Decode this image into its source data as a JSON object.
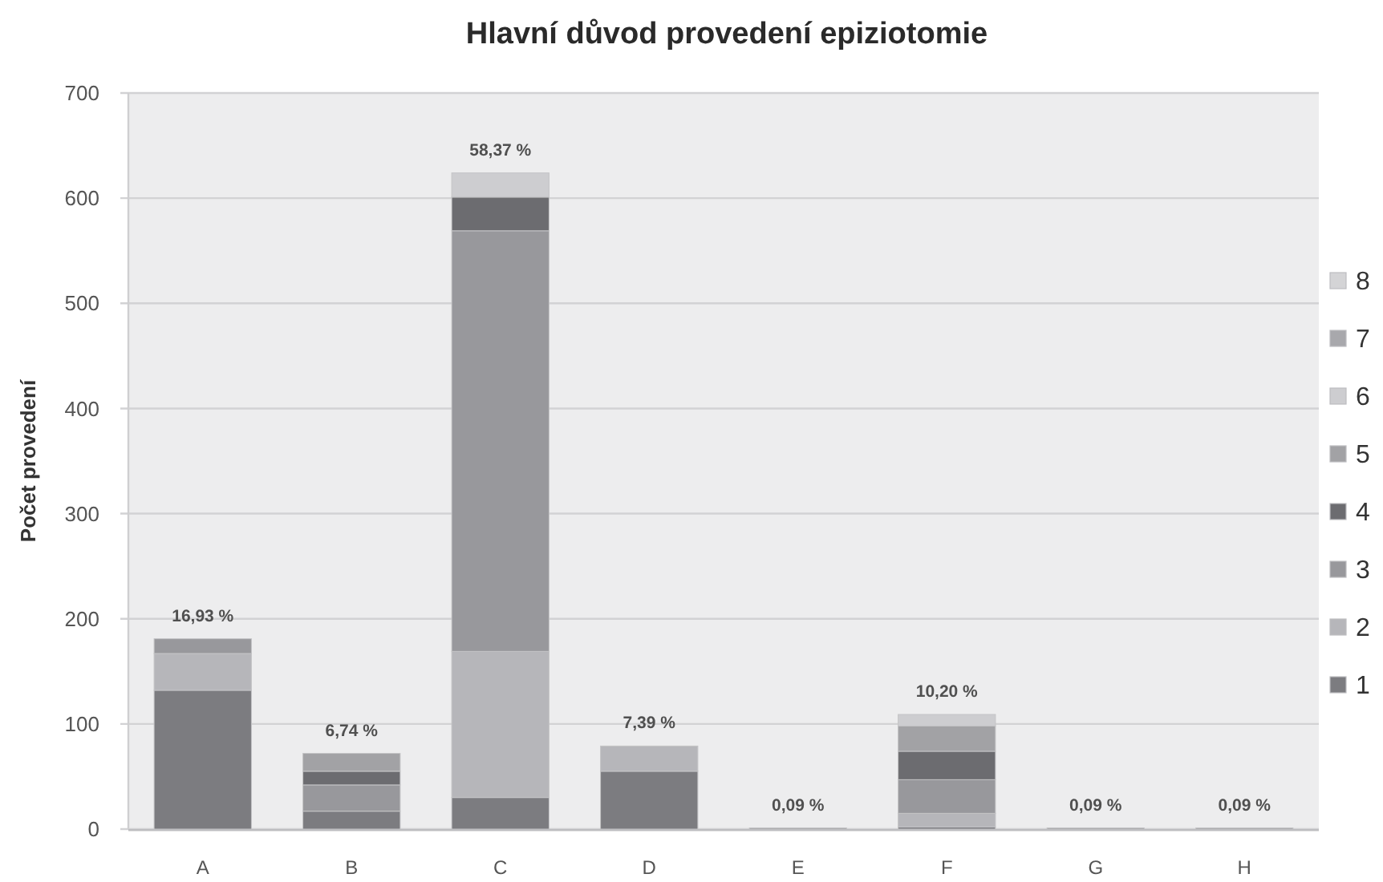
{
  "chart_data": {
    "type": "bar",
    "title": "Hlavní důvod provedení epiziotomie",
    "ylabel": "Počet provedení",
    "categories": [
      "A",
      "B",
      "C",
      "D",
      "E",
      "F",
      "G",
      "H"
    ],
    "stacked": true,
    "series": [
      {
        "name": "1",
        "color": "#7c7c80",
        "values": [
          132,
          17,
          30,
          55,
          1,
          2,
          1,
          1
        ]
      },
      {
        "name": "2",
        "color": "#b6b6ba",
        "values": [
          35,
          null,
          139,
          24,
          null,
          13,
          null,
          null
        ]
      },
      {
        "name": "3",
        "color": "#98989c",
        "values": [
          14,
          25,
          400,
          null,
          null,
          32,
          null,
          null
        ]
      },
      {
        "name": "4",
        "color": "#6c6c70",
        "values": [
          null,
          13,
          32,
          null,
          null,
          27,
          null,
          null
        ]
      },
      {
        "name": "5",
        "color": "#a2a2a5",
        "values": [
          null,
          17,
          null,
          null,
          null,
          24,
          null,
          null
        ]
      },
      {
        "name": "6",
        "color": "#cdcdd0",
        "values": [
          null,
          null,
          23,
          null,
          null,
          11,
          null,
          null
        ]
      },
      {
        "name": "7",
        "color": "#a8a8ac",
        "values": [
          null,
          null,
          null,
          null,
          null,
          null,
          null,
          null
        ]
      },
      {
        "name": "8",
        "color": "#d4d4d6",
        "values": [
          null,
          null,
          null,
          null,
          null,
          null,
          null,
          null
        ]
      }
    ],
    "ylim": [
      0,
      700
    ],
    "yticks": [
      0,
      100,
      200,
      300,
      400,
      500,
      600,
      700
    ],
    "grid": "y",
    "legend": "right",
    "annotations": [
      {
        "text": "16,93 %",
        "x": "A",
        "y": 181
      },
      {
        "text": "6,74 %",
        "x": "B",
        "y": 72
      },
      {
        "text": "58,37 %",
        "x": "C",
        "y": 624
      },
      {
        "text": "7,39 %",
        "x": "D",
        "y": 79
      },
      {
        "text": "0,09 %",
        "x": "E",
        "y": 1
      },
      {
        "text": "10,20 %",
        "x": "F",
        "y": 109
      },
      {
        "text": "0,09 %",
        "x": "G",
        "y": 1
      },
      {
        "text": "0,09 %",
        "x": "H",
        "y": 1
      }
    ]
  }
}
